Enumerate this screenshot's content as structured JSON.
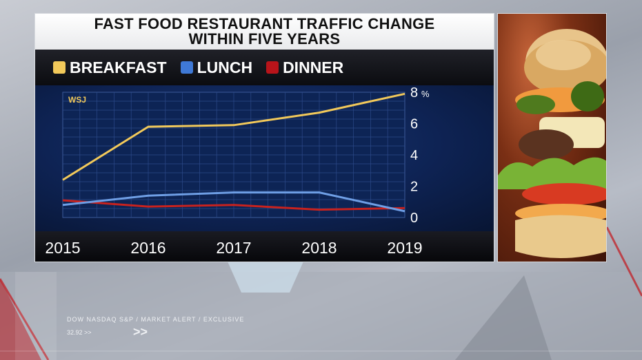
{
  "title": {
    "line1": "FAST FOOD RESTAURANT TRAFFIC CHANGE",
    "line2": "WITHIN FIVE YEARS"
  },
  "source_label": "WSJ",
  "colors": {
    "breakfast": "#f2c95a",
    "lunch": "#6f9fe6",
    "dinner": "#c8221e"
  },
  "chart_data": {
    "type": "line",
    "title": "FAST FOOD RESTAURANT TRAFFIC CHANGE WITHIN FIVE YEARS",
    "x": [
      2015,
      2016,
      2017,
      2018,
      2019
    ],
    "x_tick_labels": [
      "2015",
      "2016",
      "2017",
      "2018",
      "2019"
    ],
    "series": [
      {
        "name": "BREAKFAST",
        "values": [
          2.4,
          5.8,
          5.9,
          6.7,
          7.9
        ]
      },
      {
        "name": "LUNCH",
        "values": [
          0.8,
          1.4,
          1.6,
          1.6,
          0.4
        ]
      },
      {
        "name": "DINNER",
        "values": [
          1.1,
          0.7,
          0.8,
          0.5,
          0.6
        ]
      }
    ],
    "ylim": [
      0,
      8
    ],
    "y_ticks": [
      0,
      2,
      4,
      6,
      8
    ],
    "y_unit": "%",
    "grid": true,
    "legend": "top-left",
    "xlabel": "",
    "ylabel": ""
  },
  "ticker": {
    "line1": "DOW NASDAQ S&P  /  MARKET ALERT  /  EXCLUSIVE",
    "line2": "32.92 >>",
    "arrows": ">>"
  }
}
